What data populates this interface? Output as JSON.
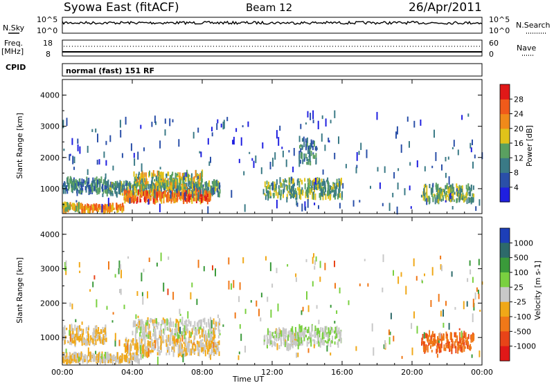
{
  "header": {
    "station": "Syowa East (fitACF)",
    "beam": "Beam 12",
    "date": "26/Apr/2011"
  },
  "noise_panel": {
    "left_label": "N.Sky",
    "right_label": "N.Search",
    "left_ticks": [
      "10^5",
      "10^0"
    ],
    "right_ticks": [
      "10^5",
      "10^0"
    ]
  },
  "freq_panel": {
    "left_label_1": "Freq.",
    "left_label_2": "[MHz]",
    "right_label": "Nave",
    "left_ticks": [
      "18",
      "8"
    ],
    "right_ticks": [
      "60",
      "0"
    ]
  },
  "cpid_panel": {
    "label": "CPID",
    "mode_text": "normal (fast) 151 RF"
  },
  "axes": {
    "x_label": "Time UT",
    "x_ticks": [
      "00:00",
      "04:00",
      "08:00",
      "12:00",
      "16:00",
      "20:00",
      "00:00"
    ],
    "y_label": "Slant Range [km]",
    "y_ticks": [
      "1000",
      "2000",
      "3000",
      "4000"
    ]
  },
  "power_colorbar": {
    "label": "Power [dB]",
    "ticks": [
      "4",
      "8",
      "12",
      "16",
      "20",
      "24",
      "28"
    ],
    "colors": [
      "#1f1fe0",
      "#2a4fa8",
      "#3a7a86",
      "#5aa060",
      "#e0c21a",
      "#f08a1a",
      "#f05a1a",
      "#e01818"
    ]
  },
  "velocity_colorbar": {
    "label": "Velocity [m s-1]",
    "ticks": [
      "1000",
      "500",
      "100",
      "25",
      "-25",
      "-100",
      "-500",
      "-1000"
    ],
    "colors": [
      "#1d3fb8",
      "#2d6a6a",
      "#3a9a3a",
      "#7ad040",
      "#c8c8c8",
      "#f0a818",
      "#f07818",
      "#e84418",
      "#e01818"
    ]
  },
  "chart_data": [
    {
      "type": "heatmap",
      "title": "Syowa East (fitACF) Beam 12 26/Apr/2011",
      "xlabel": "Time UT",
      "ylabel": "Slant Range [km]",
      "xlim": [
        "00:00",
        "24:00"
      ],
      "ylim": [
        200,
        4500
      ],
      "quantity": "Power [dB]",
      "color_range": [
        0,
        32
      ],
      "regions": [
        {
          "t": [
            0.0,
            1.0
          ],
          "range": [
            300,
            500
          ],
          "value": 18
        },
        {
          "t": [
            1.0,
            3.5
          ],
          "range": [
            300,
            450
          ],
          "value": 22
        },
        {
          "t": [
            0.0,
            2.5
          ],
          "range": [
            900,
            1300
          ],
          "value": 10
        },
        {
          "t": [
            2.5,
            9.0
          ],
          "range": [
            800,
            1200
          ],
          "value": 12
        },
        {
          "t": [
            3.5,
            8.5
          ],
          "range": [
            600,
            900
          ],
          "value": 24
        },
        {
          "t": [
            4.0,
            8.0
          ],
          "range": [
            1000,
            1500
          ],
          "value": 16
        },
        {
          "t": [
            11.5,
            16.0
          ],
          "range": [
            700,
            1300
          ],
          "value": 14
        },
        {
          "t": [
            13.5,
            14.5
          ],
          "range": [
            1800,
            2600
          ],
          "value": 10
        },
        {
          "t": [
            20.5,
            23.5
          ],
          "range": [
            600,
            1100
          ],
          "value": 14
        }
      ]
    },
    {
      "type": "heatmap",
      "title": "",
      "xlabel": "Time UT",
      "ylabel": "Slant Range [km]",
      "xlim": [
        "00:00",
        "24:00"
      ],
      "ylim": [
        200,
        4500
      ],
      "quantity": "Velocity [m s-1]",
      "color_range": [
        -1000,
        1000
      ],
      "regions": [
        {
          "t": [
            0.0,
            4.5
          ],
          "range": [
            300,
            500
          ],
          "value": -100
        },
        {
          "t": [
            0.0,
            2.5
          ],
          "range": [
            800,
            1300
          ],
          "value": -100
        },
        {
          "t": [
            3.5,
            9.0
          ],
          "range": [
            500,
            1000
          ],
          "value": -100
        },
        {
          "t": [
            4.0,
            9.0
          ],
          "range": [
            1000,
            1500
          ],
          "value": 0
        },
        {
          "t": [
            11.5,
            13.5
          ],
          "range": [
            700,
            1200
          ],
          "value": 0
        },
        {
          "t": [
            13.0,
            16.0
          ],
          "range": [
            800,
            1300
          ],
          "value": 100
        },
        {
          "t": [
            20.5,
            23.5
          ],
          "range": [
            600,
            1100
          ],
          "value": -500
        }
      ]
    }
  ]
}
